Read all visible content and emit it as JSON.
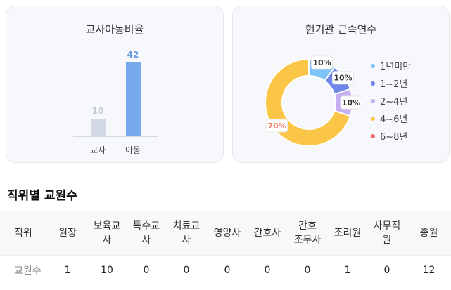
{
  "ratio_card": {
    "title": "교사아동비율",
    "chart_data": {
      "type": "bar",
      "categories": [
        "교사",
        "아동"
      ],
      "values": [
        10,
        42
      ],
      "colors": [
        "#d3d9e4",
        "#78a8ec"
      ],
      "label_colors": [
        "#c9ced8",
        "#6c9de6"
      ],
      "ylim": [
        0,
        42
      ]
    }
  },
  "tenure_card": {
    "title": "현기관 근속연수",
    "chart_data": {
      "type": "pie",
      "variant": "donut",
      "series": [
        {
          "name": "1년미만",
          "value": 10,
          "label": "10%",
          "color": "#7ec4f8"
        },
        {
          "name": "1~2년",
          "value": 10,
          "label": "10%",
          "color": "#6f86ea"
        },
        {
          "name": "2~4년",
          "value": 10,
          "label": "10%",
          "color": "#c6aef5"
        },
        {
          "name": "4~6년",
          "value": 70,
          "label": "70%",
          "color": "#fbc548"
        },
        {
          "name": "6~8년",
          "value": 0,
          "label": "",
          "color": "#f16a6a"
        }
      ],
      "highlight_label_color": "#f0826e",
      "legend_position": "right"
    }
  },
  "staff_section": {
    "title": "직위별 교원수",
    "headers": [
      [
        "직위"
      ],
      [
        "원장"
      ],
      [
        "보육교",
        "사"
      ],
      [
        "특수교",
        "사"
      ],
      [
        "치료교",
        "사"
      ],
      [
        "영양사"
      ],
      [
        "간호사"
      ],
      [
        "간호",
        "조무사"
      ],
      [
        "조리원"
      ],
      [
        "사무직",
        "원"
      ],
      [
        "총원"
      ]
    ],
    "rows": [
      [
        "교원수",
        "1",
        "10",
        "0",
        "0",
        "0",
        "0",
        "0",
        "1",
        "0",
        "12"
      ]
    ]
  }
}
